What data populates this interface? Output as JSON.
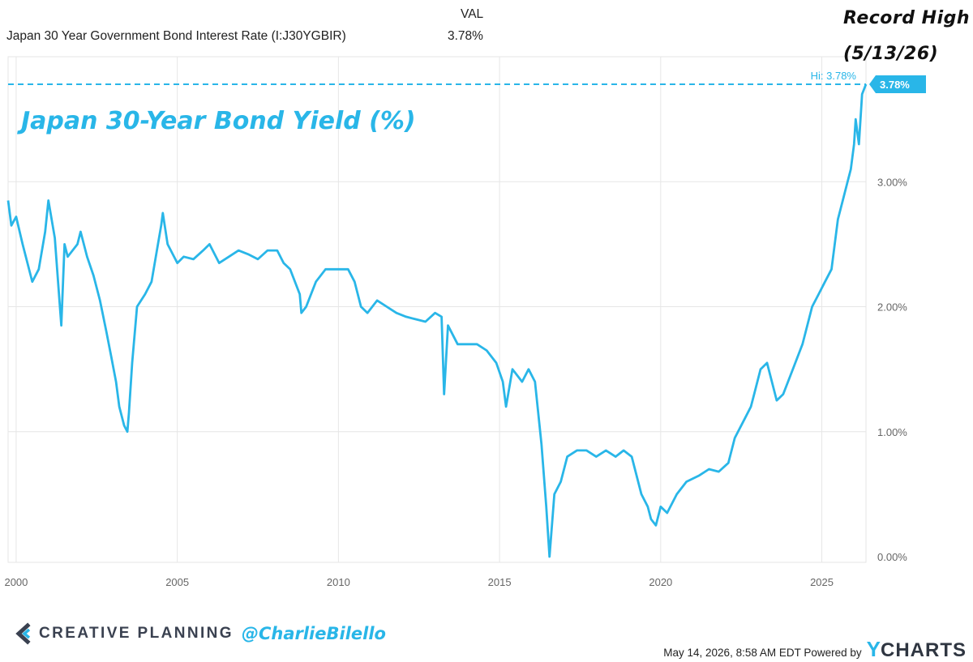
{
  "header": {
    "series_label": "Japan 30 Year Government Bond Interest Rate (I:J30YGBIR)",
    "column_label": "VAL",
    "value": "3.78%"
  },
  "annotations": {
    "record_line1": "Record High",
    "record_line2": "(5/13/26)",
    "chart_title": "Japan 30-Year Bond Yield (%)",
    "hi_label": "Hi: 3.78%",
    "last_value_badge": "3.78%"
  },
  "footer": {
    "brand": "CREATIVE PLANNING",
    "handle": "@CharlieBilello",
    "timestamp": "May 14, 2026, 8:58 AM EDT Powered by",
    "logo_y": "Y",
    "logo_rest": "CHARTS"
  },
  "colors": {
    "line": "#29b6e8",
    "grid": "#e6e6e6",
    "axis_text": "#666666",
    "brand_dark": "#3a4150"
  },
  "chart_data": {
    "type": "line",
    "title": "Japan 30-Year Bond Yield (%)",
    "xlabel": "",
    "ylabel": "",
    "xlim": [
      1999.75,
      2026.37
    ],
    "ylim": [
      0,
      3.78
    ],
    "x_ticks": [
      "2000",
      "2005",
      "2010",
      "2015",
      "2020",
      "2025"
    ],
    "y_ticks": [
      "0.00%",
      "1.00%",
      "2.00%",
      "3.00%"
    ],
    "grid": true,
    "hi_line": 3.78,
    "series": [
      {
        "x": [
          1999.75,
          1999.85,
          2000.0,
          2000.2,
          2000.5,
          2000.7,
          2000.9,
          2001.0,
          2001.2,
          2001.4,
          2001.5,
          2001.6,
          2001.9,
          2002.0,
          2002.2,
          2002.4,
          2002.6,
          2002.8,
          2002.95,
          2003.1,
          2003.2,
          2003.35,
          2003.45,
          2003.5,
          2003.6,
          2003.75,
          2004.0,
          2004.2,
          2004.4,
          2004.5,
          2004.55,
          2004.7,
          2005.0,
          2005.2,
          2005.5,
          2005.8,
          2006.0,
          2006.3,
          2006.6,
          2006.9,
          2007.2,
          2007.5,
          2007.8,
          2008.1,
          2008.3,
          2008.5,
          2008.8,
          2008.85,
          2009.0,
          2009.3,
          2009.6,
          2010.0,
          2010.3,
          2010.5,
          2010.7,
          2010.9,
          2011.2,
          2011.5,
          2011.8,
          2012.1,
          2012.4,
          2012.7,
          2013.0,
          2013.2,
          2013.28,
          2013.4,
          2013.7,
          2014.0,
          2014.3,
          2014.6,
          2014.9,
          2015.1,
          2015.2,
          2015.4,
          2015.7,
          2015.9,
          2016.1,
          2016.3,
          2016.45,
          2016.55,
          2016.7,
          2016.9,
          2017.1,
          2017.4,
          2017.7,
          2018.0,
          2018.3,
          2018.6,
          2018.85,
          2019.1,
          2019.4,
          2019.6,
          2019.7,
          2019.85,
          2020.0,
          2020.2,
          2020.5,
          2020.8,
          2021.2,
          2021.5,
          2021.8,
          2022.1,
          2022.3,
          2022.6,
          2022.8,
          2022.9,
          2023.1,
          2023.3,
          2023.6,
          2023.8,
          2024.1,
          2024.4,
          2024.7,
          2024.9,
          2025.1,
          2025.3,
          2025.5,
          2025.65,
          2025.8,
          2025.9,
          2026.0,
          2026.05,
          2026.15,
          2026.25,
          2026.37
        ],
        "values": [
          2.85,
          2.65,
          2.72,
          2.5,
          2.2,
          2.3,
          2.6,
          2.85,
          2.55,
          1.85,
          2.5,
          2.4,
          2.5,
          2.6,
          2.4,
          2.25,
          2.05,
          1.8,
          1.6,
          1.4,
          1.2,
          1.05,
          1.0,
          1.15,
          1.55,
          2.0,
          2.1,
          2.2,
          2.5,
          2.65,
          2.75,
          2.5,
          2.35,
          2.4,
          2.38,
          2.45,
          2.5,
          2.35,
          2.4,
          2.45,
          2.42,
          2.38,
          2.45,
          2.45,
          2.35,
          2.3,
          2.1,
          1.95,
          2.0,
          2.2,
          2.3,
          2.3,
          2.3,
          2.2,
          2.0,
          1.95,
          2.05,
          2.0,
          1.95,
          1.92,
          1.9,
          1.88,
          1.95,
          1.92,
          1.3,
          1.85,
          1.7,
          1.7,
          1.7,
          1.65,
          1.55,
          1.4,
          1.2,
          1.5,
          1.4,
          1.5,
          1.4,
          0.9,
          0.4,
          0.0,
          0.5,
          0.6,
          0.8,
          0.85,
          0.85,
          0.8,
          0.85,
          0.8,
          0.85,
          0.8,
          0.5,
          0.4,
          0.3,
          0.25,
          0.4,
          0.35,
          0.5,
          0.6,
          0.65,
          0.7,
          0.68,
          0.75,
          0.95,
          1.1,
          1.2,
          1.3,
          1.5,
          1.55,
          1.25,
          1.3,
          1.5,
          1.7,
          2.0,
          2.1,
          2.2,
          2.3,
          2.7,
          2.85,
          3.0,
          3.1,
          3.3,
          3.5,
          3.3,
          3.7,
          3.78
        ]
      }
    ]
  }
}
